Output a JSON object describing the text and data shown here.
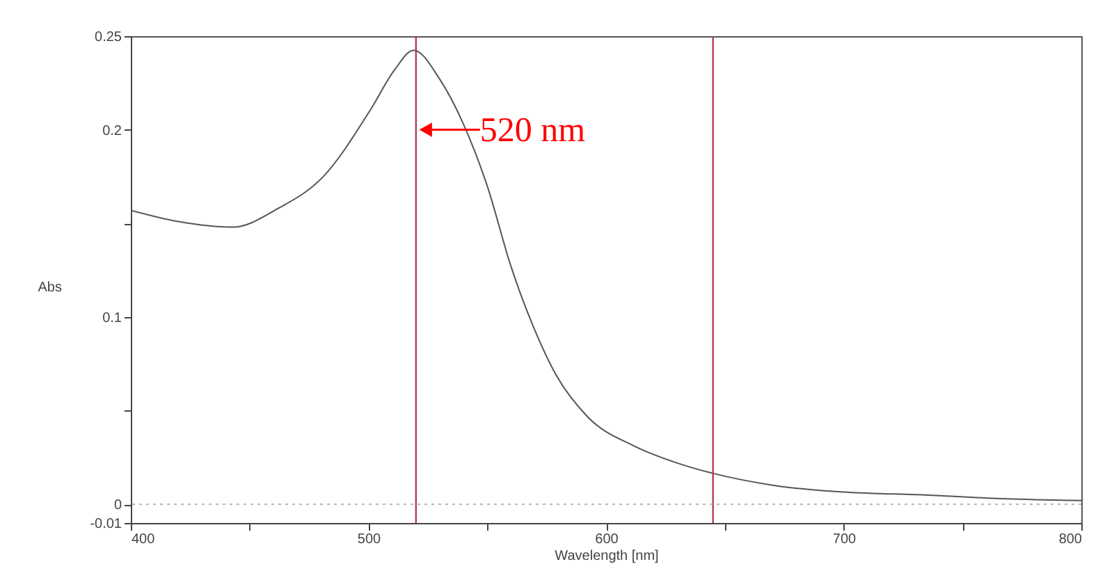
{
  "chart_data": {
    "type": "line",
    "xlabel": "Wavelength [nm]",
    "ylabel": "Abs",
    "x": [
      400,
      420,
      443,
      462,
      481,
      501,
      511,
      519,
      530,
      540,
      550,
      560,
      570,
      579,
      592,
      612,
      630,
      645,
      671,
      700,
      733,
      766,
      800
    ],
    "series": [
      {
        "color": "#555555",
        "values": [
          0.157,
          0.151,
          0.148,
          0.158,
          0.175,
          0.211,
          0.232,
          0.2425,
          0.227,
          0.203,
          0.17,
          0.127,
          0.093,
          0.069,
          0.047,
          0.031,
          0.022,
          0.0165,
          0.01,
          0.0065,
          0.005,
          0.003,
          0.002
        ]
      }
    ],
    "xlim": [
      400,
      800
    ],
    "xticks": [
      400,
      {
        "value": 450,
        "label": null
      },
      500,
      {
        "value": 550,
        "label": null
      },
      600,
      {
        "value": 650,
        "label": null
      },
      700,
      {
        "value": 750,
        "label": null
      },
      800
    ],
    "ylim": [
      -0.01,
      0.25
    ],
    "yticks": [
      -0.01,
      0,
      {
        "value": 0.05,
        "label": null
      },
      0.1,
      {
        "value": 0.15,
        "label": null
      },
      0.2,
      0.25
    ],
    "ref_lines": [
      {
        "axis": "x",
        "value": 520,
        "color": "#b04050"
      },
      {
        "axis": "x",
        "value": 645,
        "color": "#b04050"
      },
      {
        "axis": "y",
        "value": 0,
        "color": "#bbbbbb",
        "line_style": "dotted"
      }
    ],
    "annotations": [
      {
        "text": "520 nm",
        "x": 520,
        "y": 0.2
      }
    ],
    "marker": "none",
    "line_style": "solid"
  }
}
